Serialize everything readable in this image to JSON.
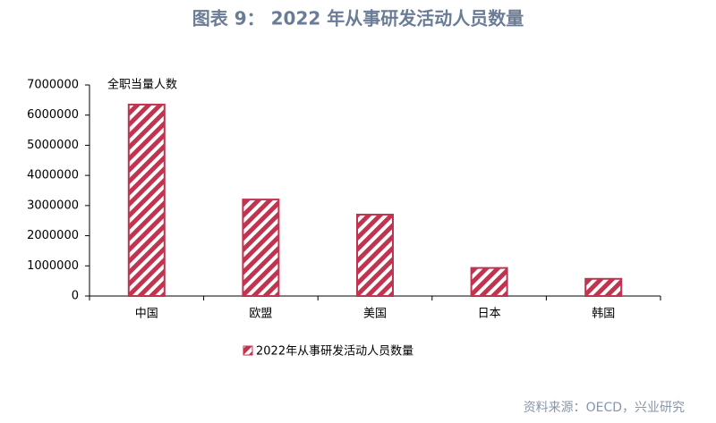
{
  "chart_data": {
    "type": "bar",
    "title": "图表 9： 2022 年从事研发活动人员数量",
    "y_label": "全职当量人数",
    "source": "资料来源：OECD，兴业研究",
    "categories": [
      "中国",
      "欧盟",
      "美国",
      "日本",
      "韩国"
    ],
    "series": [
      {
        "name": "2022年从事研发活动人员数量",
        "color": "#c0344f",
        "values": [
          6350000,
          3200000,
          2700000,
          930000,
          570000
        ]
      }
    ],
    "ylim": [
      0,
      7000000
    ],
    "yticks": [
      0,
      1000000,
      2000000,
      3000000,
      4000000,
      5000000,
      6000000,
      7000000
    ],
    "grid": false
  }
}
